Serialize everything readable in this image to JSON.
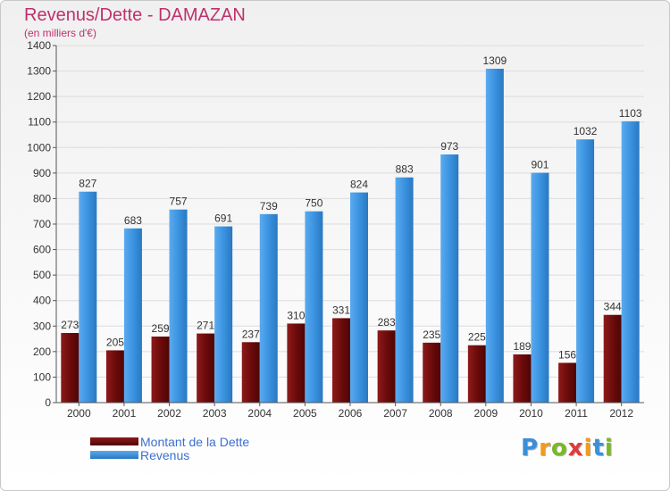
{
  "title": "Revenus/Dette - DAMAZAN",
  "subtitle": "(en milliers d'€)",
  "legend": [
    {
      "label": "Montant de la Dette",
      "color": "#7a0f0f"
    },
    {
      "label": "Revenus",
      "color": "#3f95e0"
    }
  ],
  "logo": {
    "text": "Proxiti",
    "colors": [
      "#3b8fd9",
      "#f29b1b",
      "#7ab829",
      "#e03a3a",
      "#f29b1b",
      "#3b8fd9",
      "#7ab829"
    ]
  },
  "chart_data": {
    "type": "bar",
    "categories": [
      "2000",
      "2001",
      "2002",
      "2003",
      "2004",
      "2005",
      "2006",
      "2007",
      "2008",
      "2009",
      "2010",
      "2011",
      "2012"
    ],
    "series": [
      {
        "name": "Montant de la Dette",
        "color": "#7a0f0f",
        "values": [
          273,
          205,
          259,
          271,
          237,
          310,
          331,
          283,
          235,
          225,
          189,
          156,
          344
        ]
      },
      {
        "name": "Revenus",
        "color": "#3f95e0",
        "values": [
          827,
          683,
          757,
          691,
          739,
          750,
          824,
          883,
          973,
          1309,
          901,
          1032,
          1103
        ]
      }
    ],
    "yticks": [
      0,
      100,
      200,
      300,
      400,
      500,
      600,
      700,
      800,
      900,
      1000,
      1100,
      1200,
      1300,
      1400
    ],
    "ylim": [
      0,
      1400
    ],
    "grid": true,
    "legend_position": "bottom-left"
  }
}
